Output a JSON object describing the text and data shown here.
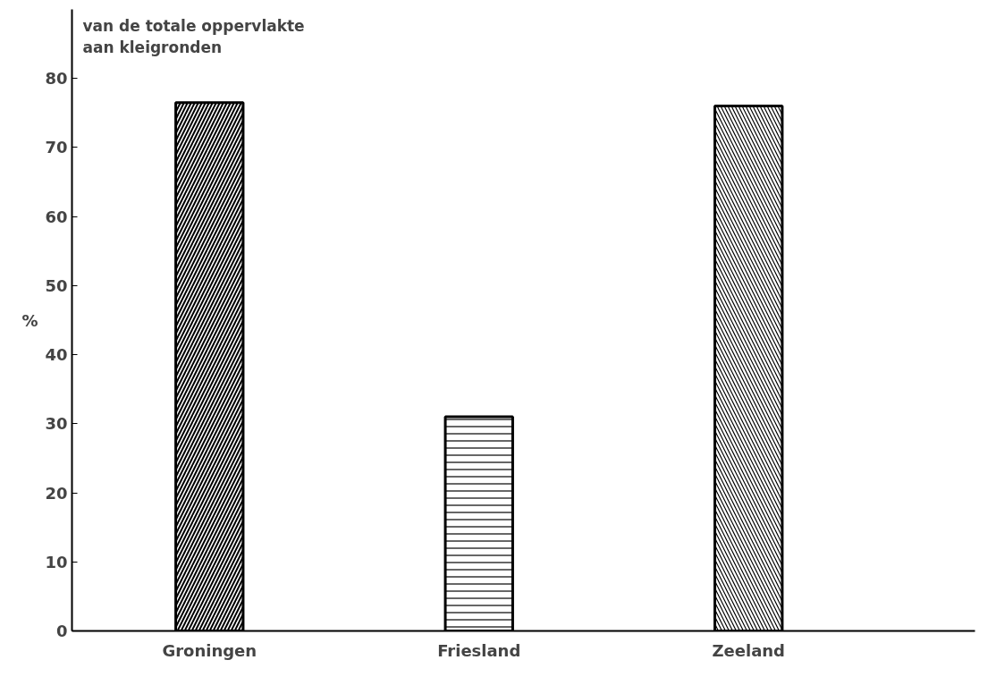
{
  "chart_data": {
    "type": "bar",
    "ylabel": "%",
    "annotations": [
      "van de totale oppervlakte\naan kleigronden"
    ],
    "categories": [
      "Groningen",
      "Friesland",
      "Zeeland"
    ],
    "values": [
      76.5,
      31,
      76
    ],
    "colors": [
      "#000000",
      "#000000",
      "#000000"
    ],
    "ylim": [
      0,
      90
    ],
    "yticks": [
      0,
      10,
      20,
      30,
      40,
      50,
      60,
      70,
      80
    ],
    "grid": false
  }
}
